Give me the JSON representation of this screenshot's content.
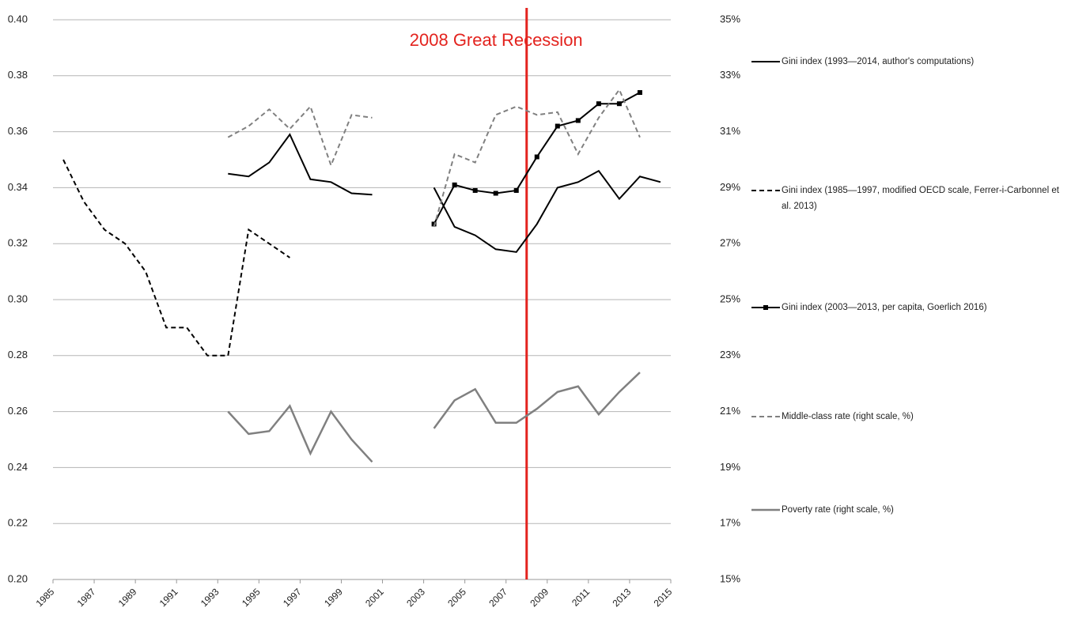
{
  "chart_data": {
    "type": "line",
    "x": [
      1985.5,
      1986.5,
      1987.5,
      1988.5,
      1989.5,
      1990.5,
      1991.5,
      1992.5,
      1993.5,
      1994.5,
      1995.5,
      1996.5,
      1997.5,
      1998.5,
      1999.5,
      2000.5,
      2001.5,
      2002.5,
      2003.5,
      2004.5,
      2005.5,
      2006.5,
      2007.5,
      2008.5,
      2009.5,
      2010.5,
      2011.5,
      2012.5,
      2013.5,
      2014.5
    ],
    "xlim": [
      1985,
      2015
    ],
    "xticks": [
      1985,
      1987,
      1989,
      1991,
      1993,
      1995,
      1997,
      1999,
      2001,
      2003,
      2005,
      2007,
      2009,
      2011,
      2013,
      2015
    ],
    "ylim": [
      0.2,
      0.4
    ],
    "yticks": [
      {
        "value": 0.2,
        "label": "0.20"
      },
      {
        "value": 0.22,
        "label": "0.22"
      },
      {
        "value": 0.24,
        "label": "0.24"
      },
      {
        "value": 0.26,
        "label": "0.26"
      },
      {
        "value": 0.28,
        "label": "0.28"
      },
      {
        "value": 0.3,
        "label": "0.30"
      },
      {
        "value": 0.32,
        "label": "0.32"
      },
      {
        "value": 0.34,
        "label": "0.34"
      },
      {
        "value": 0.36,
        "label": "0.36"
      },
      {
        "value": 0.38,
        "label": "0.38"
      },
      {
        "value": 0.4,
        "label": "0.40"
      }
    ],
    "y2lim": [
      15,
      35
    ],
    "y2ticks": [
      {
        "value": 15,
        "label": "15%"
      },
      {
        "value": 17,
        "label": "17%"
      },
      {
        "value": 19,
        "label": "19%"
      },
      {
        "value": 21,
        "label": "21%"
      },
      {
        "value": 23,
        "label": "23%"
      },
      {
        "value": 25,
        "label": "25%"
      },
      {
        "value": 27,
        "label": "27%"
      },
      {
        "value": 29,
        "label": "29%"
      },
      {
        "value": 31,
        "label": "31%"
      },
      {
        "value": 33,
        "label": "33%"
      },
      {
        "value": 35,
        "label": "35%"
      }
    ],
    "grid": true,
    "legend": "right",
    "annotations": [
      {
        "text": "2008 Great Recession",
        "x": 2008,
        "color": "#e3231e"
      }
    ],
    "series": [
      {
        "name": "Gini index (1993—2014, author's computations)",
        "color": "#000000",
        "dash": false,
        "values": [
          null,
          null,
          null,
          null,
          null,
          null,
          null,
          null,
          0.345,
          0.344,
          0.349,
          0.359,
          0.343,
          0.342,
          0.338,
          0.3375,
          null,
          null,
          0.34,
          0.326,
          0.323,
          0.318,
          0.317,
          0.327,
          0.34,
          0.342,
          0.346,
          0.336,
          0.344,
          0.342
        ]
      },
      {
        "name": "Gini index (1985—1997, modified OECD scale, Ferrer-i-Carbonnel et al. 2013)",
        "color": "#000000",
        "dash": true,
        "values": [
          0.35,
          0.335,
          0.325,
          0.32,
          0.31,
          0.29,
          0.29,
          0.28,
          0.28,
          0.325,
          0.32,
          0.315,
          null,
          null,
          null,
          null,
          null,
          null,
          null,
          null,
          null,
          null,
          null,
          null,
          null,
          null,
          null,
          null,
          null,
          null
        ]
      },
      {
        "name": "Gini index (2003—2013, per capita, Goerlich 2016)",
        "color": "#000000",
        "dash": false,
        "marker": "square",
        "values": [
          null,
          null,
          null,
          null,
          null,
          null,
          null,
          null,
          null,
          null,
          null,
          null,
          null,
          null,
          null,
          null,
          null,
          null,
          0.327,
          0.341,
          0.339,
          0.338,
          0.339,
          0.351,
          0.362,
          0.364,
          0.37,
          0.37,
          0.374,
          null
        ]
      },
      {
        "name": "Middle-class rate (right scale, %)",
        "color": "#808080",
        "dash": true,
        "axis": "y2",
        "values": [
          null,
          null,
          null,
          null,
          null,
          null,
          null,
          null,
          30.8,
          31.2,
          31.8,
          31.1,
          31.9,
          29.8,
          31.6,
          31.5,
          null,
          null,
          27.6,
          30.2,
          29.9,
          31.6,
          31.9,
          31.6,
          31.7,
          30.2,
          31.5,
          32.5,
          30.8,
          null
        ]
      },
      {
        "name": "Poverty rate (right scale, %)",
        "color": "#808080",
        "dash": false,
        "axis": "y2",
        "width": 2.5,
        "values": [
          null,
          null,
          null,
          null,
          null,
          null,
          null,
          null,
          21.0,
          20.2,
          20.3,
          21.2,
          19.5,
          21.0,
          20.0,
          19.2,
          null,
          null,
          20.4,
          21.4,
          21.8,
          20.6,
          20.6,
          21.1,
          21.7,
          21.9,
          20.9,
          21.7,
          22.4,
          null
        ]
      }
    ]
  }
}
